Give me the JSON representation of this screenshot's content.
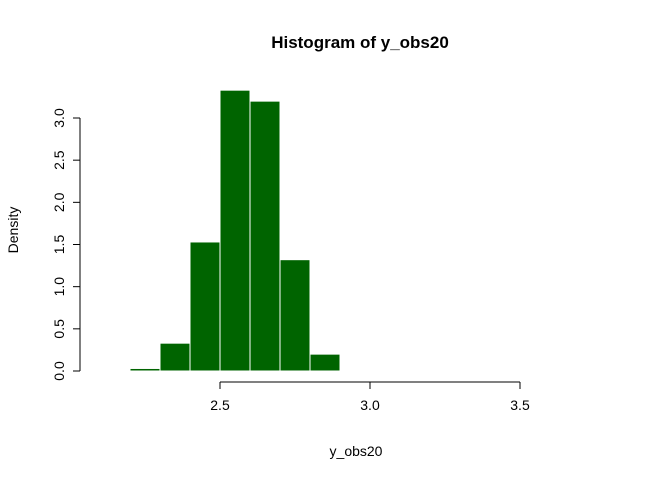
{
  "chart_data": {
    "type": "bar",
    "title": "Histogram of y_obs20",
    "xlabel": "y_obs20",
    "ylabel": "Density",
    "bar_color": "#006400",
    "bar_border_color": "#ffffff",
    "bin_edges": [
      2.2,
      2.3,
      2.4,
      2.5,
      2.6,
      2.7,
      2.8,
      2.9,
      3.0
    ],
    "values": [
      0.03,
      0.33,
      1.53,
      3.33,
      3.2,
      1.32,
      0.2,
      0.01
    ],
    "xlim": [
      2.0,
      3.5
    ],
    "ylim": [
      0,
      3.3
    ],
    "x_ticks": [
      2.5,
      3.0,
      3.5
    ],
    "x_tick_labels": [
      "2.5",
      "3.0",
      "3.5"
    ],
    "y_ticks": [
      0.0,
      0.5,
      1.0,
      1.5,
      2.0,
      2.5,
      3.0
    ],
    "y_tick_labels": [
      "0.0",
      "0.5",
      "1.0",
      "1.5",
      "2.0",
      "2.5",
      "3.0"
    ],
    "grid": false
  }
}
